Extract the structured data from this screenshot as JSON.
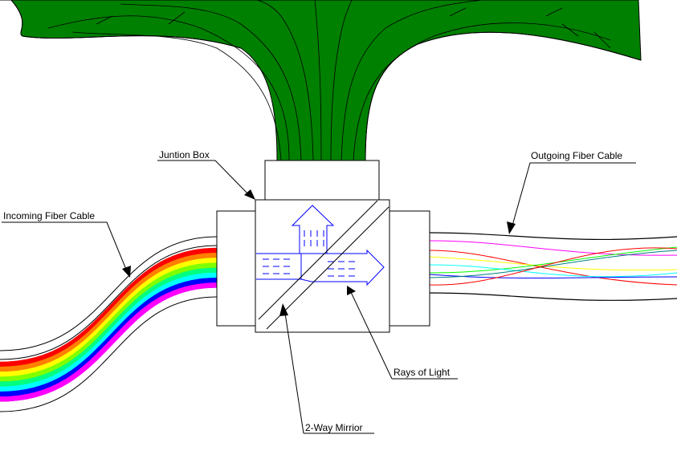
{
  "labels": {
    "junction_box": "Juntion Box",
    "outgoing_cable": "Outgoing Fiber Cable",
    "incoming_cable": "Incoming Fiber Cable",
    "rays_of_light": "Rays of Light",
    "mirror": "2-Way Mirrior"
  },
  "colors": {
    "tree_fill": "#008000",
    "outline": "#000000",
    "light_rays": "#0000ff",
    "incoming_strands": [
      "#ff0000",
      "#ff8000",
      "#ffff00",
      "#80ff00",
      "#00ff80",
      "#00ffff",
      "#0000ff",
      "#ff00ff"
    ],
    "outgoing_strands": [
      "#ff00ff",
      "#ff0000",
      "#ffff00",
      "#00ff00",
      "#00ffff",
      "#0000ff",
      "#008080",
      "#ff0000"
    ]
  }
}
